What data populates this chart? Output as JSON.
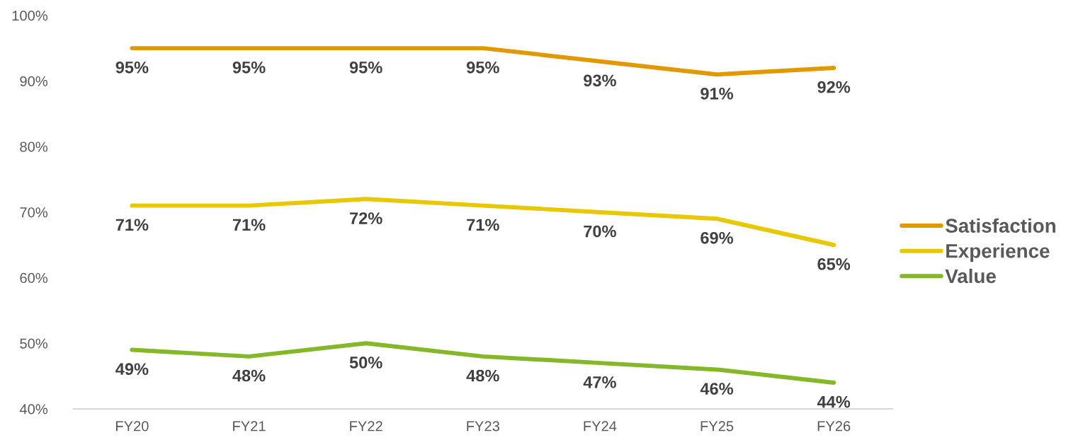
{
  "chart_data": {
    "type": "line",
    "categories": [
      "FY20",
      "FY21",
      "FY22",
      "FY23",
      "FY24",
      "FY25",
      "FY26"
    ],
    "series": [
      {
        "name": "Satisfaction",
        "color": "#e09a00",
        "values": [
          95,
          95,
          95,
          95,
          93,
          91,
          92
        ],
        "value_labels": [
          "95%",
          "95%",
          "95%",
          "95%",
          "93%",
          "91%",
          "92%"
        ]
      },
      {
        "name": "Experience",
        "color": "#e8c800",
        "values": [
          71,
          71,
          72,
          71,
          70,
          69,
          65
        ],
        "value_labels": [
          "71%",
          "71%",
          "72%",
          "71%",
          "70%",
          "69%",
          "65%"
        ]
      },
      {
        "name": "Value",
        "color": "#84b828",
        "values": [
          49,
          48,
          50,
          48,
          47,
          46,
          44
        ],
        "value_labels": [
          "49%",
          "48%",
          "50%",
          "48%",
          "47%",
          "46%",
          "44%"
        ]
      }
    ],
    "ylim": [
      40,
      100
    ],
    "yticks": [
      {
        "value": 40,
        "label": "40%"
      },
      {
        "value": 50,
        "label": "50%"
      },
      {
        "value": 60,
        "label": "60%"
      },
      {
        "value": 70,
        "label": "70%"
      },
      {
        "value": 80,
        "label": "80%"
      },
      {
        "value": 90,
        "label": "90%"
      },
      {
        "value": 100,
        "label": "100%"
      }
    ],
    "grid": false,
    "legend": "right"
  }
}
